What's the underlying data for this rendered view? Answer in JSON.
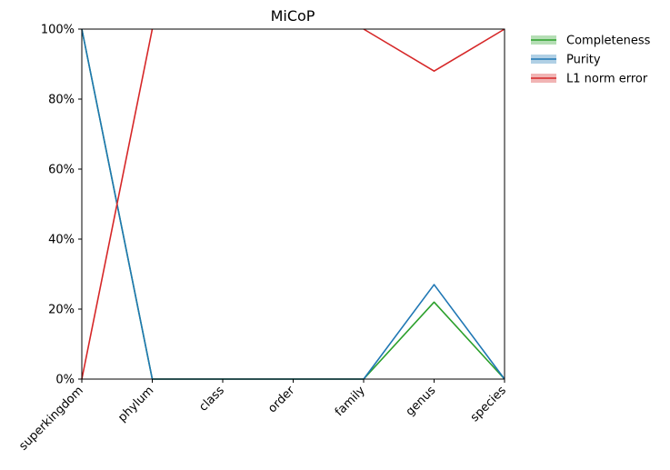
{
  "chart_data": {
    "type": "line",
    "title": "MiCoP",
    "xlabel": "",
    "ylabel": "",
    "categories": [
      "superkingdom",
      "phylum",
      "class",
      "order",
      "family",
      "genus",
      "species"
    ],
    "y_ticks": [
      "0%",
      "20%",
      "40%",
      "60%",
      "80%",
      "100%"
    ],
    "ylim": [
      0,
      100
    ],
    "legend_position": "outside-top-right",
    "series": [
      {
        "name": "Completeness",
        "color": "#2ca02c",
        "values": [
          100,
          0,
          0,
          0,
          0,
          22,
          0
        ]
      },
      {
        "name": "Purity",
        "color": "#1f77b4",
        "values": [
          100,
          0,
          0,
          0,
          0,
          27,
          0
        ]
      },
      {
        "name": "L1 norm error",
        "color": "#d62728",
        "values": [
          0,
          100,
          null,
          null,
          100,
          88,
          100
        ]
      }
    ]
  }
}
